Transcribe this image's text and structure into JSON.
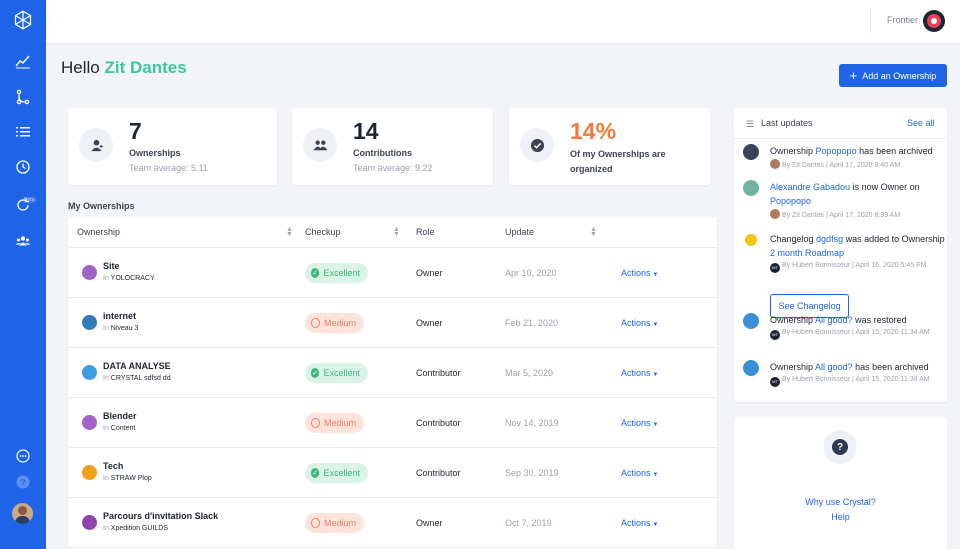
{
  "header": {
    "org_name": "Frontier",
    "greeting": "Hello",
    "user_name": "Zit Dantes",
    "add_button_label": "Add an Ownership"
  },
  "sidebar": {
    "items": [
      {
        "icon": "logo-icon"
      },
      {
        "icon": "chart-icon"
      },
      {
        "icon": "branch-icon"
      },
      {
        "icon": "list-icon"
      },
      {
        "icon": "history-icon"
      },
      {
        "icon": "refresh-icon",
        "badge": "Beta"
      },
      {
        "icon": "team-icon"
      }
    ],
    "bottom": [
      {
        "icon": "chat-icon"
      },
      {
        "icon": "help-icon"
      },
      {
        "icon": "avatar"
      }
    ]
  },
  "stats": [
    {
      "value": "7",
      "label": "Ownerships",
      "sub": "Team average: 5.11",
      "icon": "user-icon"
    },
    {
      "value": "14",
      "label": "Contributions",
      "sub": "Team average: 9.22",
      "icon": "users-icon"
    },
    {
      "value": "14%",
      "label": "Of my Ownerships are organized",
      "icon": "check-circle-icon",
      "color": "#f27b3a"
    }
  ],
  "ownerships": {
    "title": "My Ownerships",
    "columns": [
      "Ownership",
      "Checkup",
      "Role",
      "Update"
    ],
    "rows": [
      {
        "name": "Site",
        "in": "In",
        "parent": "YOLOCRACY",
        "color": "#a362c8",
        "checkup": "Excellent",
        "role": "Owner",
        "update": "Apr 10, 2020",
        "actions": "Actions"
      },
      {
        "name": "internet",
        "in": "In",
        "parent": "Niveau 3",
        "color": "#2d7cb8",
        "checkup": "Medium",
        "role": "Owner",
        "update": "Feb 21, 2020",
        "actions": "Actions"
      },
      {
        "name": "DATA ANALYSE",
        "in": "In",
        "parent": "CRYSTAL sdfsd dd",
        "color": "#3a9ee0",
        "checkup": "Excellent",
        "role": "Contributor",
        "update": "Mar 5, 2020",
        "actions": "Actions"
      },
      {
        "name": "Blender",
        "in": "In",
        "parent": "Content",
        "color": "#a362c8",
        "checkup": "Medium",
        "role": "Contributor",
        "update": "Nov 14, 2019",
        "actions": "Actions"
      },
      {
        "name": "Tech",
        "in": "In",
        "parent": "STRAW Plop",
        "color": "#f2a01c",
        "checkup": "Excellent",
        "role": "Contributor",
        "update": "Sep 30, 2019",
        "actions": "Actions"
      },
      {
        "name": "Parcours d'invitation Slack",
        "in": "In",
        "parent": "Xpedition GUILDS",
        "color": "#8e44ad",
        "checkup": "Medium",
        "role": "Owner",
        "update": "Oct 7, 2019",
        "actions": "Actions"
      }
    ]
  },
  "updates": {
    "title": "Last updates",
    "see_all": "See all",
    "items": [
      {
        "pre": "Ownership ",
        "link": "Popopopo",
        "post": " has been archived",
        "meta": "By Zit Dantes | April 17, 2020 8:40 AM"
      },
      {
        "link": "Alexandre Gabadou",
        "post": " is now Owner on ",
        "link2": "Popopopo",
        "meta": "By Zit Dantes | April 17, 2020 8:39 AM"
      },
      {
        "pre": "Changelog ",
        "link": "dgdfsg",
        "post": " was added to Ownership ",
        "link2": "2 month Roadmap",
        "meta": "By Hubert Bonnisseur | April 16, 2020 5:45 PM",
        "button": "See Changelog"
      },
      {
        "pre": "Ownership ",
        "link": "All good?",
        "post": " was restored",
        "meta": "By Hubert Bonnisseur | April 15, 2020 11:34 AM"
      },
      {
        "pre": "Ownership ",
        "link": "All good?",
        "post": " has been archived",
        "meta": "By Hubert Bonnisseur | April 15, 2020 11:34 AM"
      }
    ]
  },
  "help": {
    "why": "Why use Crystal?",
    "help": "Help"
  },
  "colors": {
    "accent": "#1f63e6",
    "green": "#3cc79a",
    "orange": "#f27b3a"
  }
}
